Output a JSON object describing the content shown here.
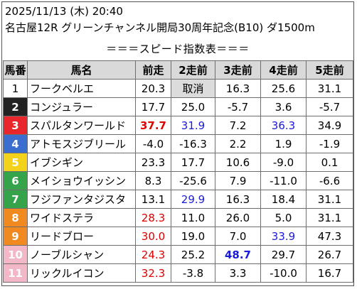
{
  "header": {
    "line1": "2025/11/13 (木) 20:40",
    "line2": "名古屋12R グリーンチャンネル開局30周年記念(B10) ダ1500m",
    "subtitle": "＝＝＝スピード指数表＝＝＝"
  },
  "columns": [
    "馬番",
    "馬名",
    "前走",
    "2走前",
    "3走前",
    "4走前",
    "5走前"
  ],
  "frame_colors": {
    "1": "#ffffff",
    "2": "#222222",
    "3": "#e8262c",
    "4": "#3c6ecf",
    "5": "#f2d21b",
    "6": "#35a34a",
    "7": "#f08a20",
    "8": "#f2b8c8"
  },
  "rows": [
    {
      "num": "1",
      "name": "フークベルエ",
      "bg": "#ffffff",
      "fg": "#000000",
      "v": [
        "20.3",
        "取消",
        "16.3",
        "25.6",
        "31.1"
      ],
      "s": [
        "",
        "gray",
        "",
        "",
        ""
      ]
    },
    {
      "num": "2",
      "name": "コンジュラー",
      "bg": "#222222",
      "fg": "#ffffff",
      "v": [
        "17.7",
        "25.0",
        "-5.7",
        "3.6",
        "-5.7"
      ],
      "s": [
        "",
        "",
        "",
        "",
        ""
      ]
    },
    {
      "num": "3",
      "name": "スパルタンワールド",
      "bg": "#e8262c",
      "fg": "#ffffff",
      "v": [
        "37.7",
        "31.9",
        "7.2",
        "36.3",
        "34.9"
      ],
      "s": [
        "redb",
        "blue",
        "",
        "blue",
        ""
      ]
    },
    {
      "num": "4",
      "name": "アトモスジブリール",
      "bg": "#3c6ecf",
      "fg": "#ffffff",
      "v": [
        "-4.0",
        "-16.3",
        "2.2",
        "1.9",
        "-1.9"
      ],
      "s": [
        "",
        "",
        "",
        "",
        ""
      ]
    },
    {
      "num": "5",
      "name": "イブシギン",
      "bg": "#f2d21b",
      "fg": "#ffffff",
      "v": [
        "23.3",
        "17.7",
        "10.6",
        "-9.0",
        "0.1"
      ],
      "s": [
        "",
        "",
        "",
        "",
        ""
      ]
    },
    {
      "num": "6",
      "name": "メイショウイッシン",
      "bg": "#35a34a",
      "fg": "#ffffff",
      "v": [
        "8.3",
        "-25.6",
        "7.9",
        "-11.0",
        "-6.6"
      ],
      "s": [
        "",
        "",
        "",
        "",
        ""
      ]
    },
    {
      "num": "7",
      "name": "フジファンタジスタ",
      "bg": "#35a34a",
      "fg": "#ffffff",
      "v": [
        "13.1",
        "29.9",
        "16.3",
        "18.4",
        "31.1"
      ],
      "s": [
        "",
        "blue",
        "",
        "",
        ""
      ]
    },
    {
      "num": "8",
      "name": "ワイドステラ",
      "bg": "#f08a20",
      "fg": "#ffffff",
      "v": [
        "28.3",
        "11.0",
        "26.0",
        "5.0",
        "31.1"
      ],
      "s": [
        "red",
        "",
        "",
        "",
        ""
      ]
    },
    {
      "num": "9",
      "name": "リードブロー",
      "bg": "#f08a20",
      "fg": "#ffffff",
      "v": [
        "30.0",
        "19.0",
        "7.0",
        "33.9",
        "47.3"
      ],
      "s": [
        "red",
        "",
        "",
        "blue",
        ""
      ]
    },
    {
      "num": "10",
      "name": "ノーブルシャン",
      "bg": "#f2b8c8",
      "fg": "#ffffff",
      "v": [
        "24.3",
        "25.2",
        "48.7",
        "29.7",
        "26.7"
      ],
      "s": [
        "red",
        "",
        "blueb",
        "",
        ""
      ]
    },
    {
      "num": "11",
      "name": "リックルイコン",
      "bg": "#f2b8c8",
      "fg": "#ffffff",
      "v": [
        "32.3",
        "-3.8",
        "3.3",
        "-10.0",
        "16.7"
      ],
      "s": [
        "red",
        "",
        "",
        "",
        ""
      ]
    }
  ]
}
